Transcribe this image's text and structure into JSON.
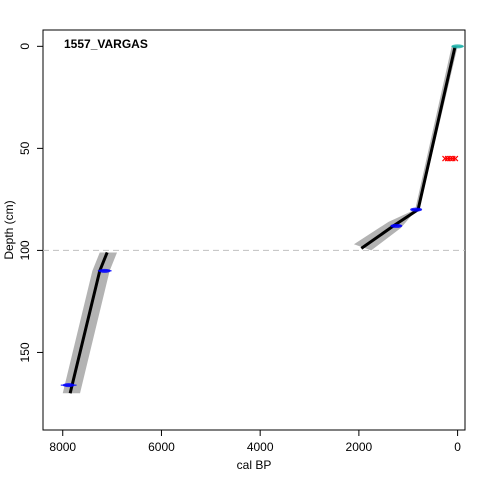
{
  "chart_data": {
    "type": "line",
    "core_label": "1557_VARGAS",
    "xlabel": "cal BP",
    "ylabel": "Depth (cm)",
    "x_reversed": true,
    "y_reversed": true,
    "xlim": [
      8400,
      -150
    ],
    "ylim": [
      -8,
      188
    ],
    "x_ticks": [
      8000,
      6000,
      4000,
      2000,
      0
    ],
    "x_tick_labels": [
      "8000",
      "6000",
      "4000",
      "2000",
      "0"
    ],
    "y_ticks": [
      0,
      50,
      100,
      150
    ],
    "y_tick_labels": [
      "0",
      "50",
      "100",
      "150"
    ],
    "hiatus_depth": 100,
    "upper_section": {
      "median": [
        [
          50,
          0
        ],
        [
          800,
          80
        ],
        [
          1300,
          88
        ],
        [
          1950,
          99
        ]
      ],
      "range_min": [
        [
          0,
          0
        ],
        [
          760,
          78
        ],
        [
          1150,
          89
        ],
        [
          1750,
          100
        ]
      ],
      "range_max": [
        [
          120,
          0
        ],
        [
          860,
          80
        ],
        [
          1400,
          86
        ],
        [
          2100,
          97
        ]
      ]
    },
    "lower_section": {
      "median": [
        [
          7100,
          101
        ],
        [
          7250,
          110
        ],
        [
          7850,
          170
        ]
      ],
      "range_min": [
        [
          6900,
          101
        ],
        [
          7050,
          110
        ],
        [
          7650,
          170
        ]
      ],
      "range_max": [
        [
          7250,
          101
        ],
        [
          7400,
          110
        ],
        [
          8000,
          170
        ]
      ]
    },
    "dates": [
      {
        "kind": "surface",
        "depth": 0,
        "age": 0,
        "spread": 250,
        "color": "#20b2aa"
      },
      {
        "kind": "calibrated",
        "depth": 80,
        "age": 840,
        "spread": 180,
        "color": "#0000ff"
      },
      {
        "kind": "calibrated",
        "depth": 88,
        "age": 1240,
        "spread": 200,
        "color": "#0000ff"
      },
      {
        "kind": "calibrated",
        "depth": 110,
        "age": 7150,
        "spread": 280,
        "color": "#0000ff"
      },
      {
        "kind": "calibrated",
        "depth": 166,
        "age": 7880,
        "spread": 320,
        "color": "#0000ff"
      },
      {
        "kind": "outlier",
        "depth": 55,
        "age": 150,
        "spread": 180,
        "color": "#ff0000"
      }
    ],
    "colors": {
      "range": "#b3b3b3",
      "median": "#000000",
      "hiatus": "#c0c0c0"
    }
  }
}
